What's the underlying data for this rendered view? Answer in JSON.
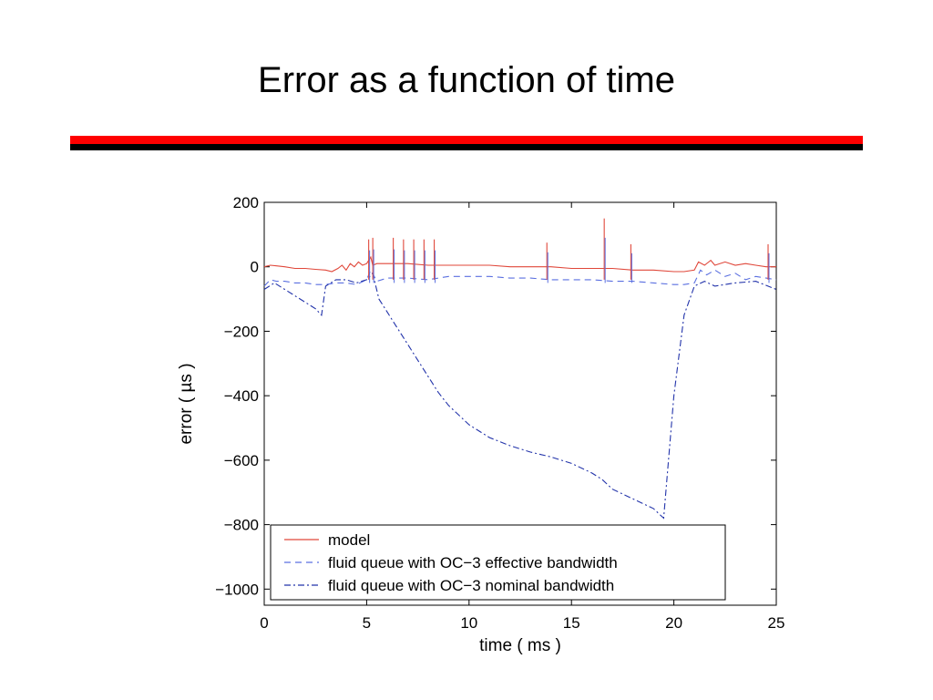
{
  "slide": {
    "title": "Error as a function of time"
  },
  "colors": {
    "accent_red": "#ff0000",
    "accent_black": "#000000",
    "model": "#e0473a",
    "effective": "#5a6fe0",
    "nominal": "#2233aa"
  },
  "chart_data": {
    "type": "line",
    "xlabel": "time ( ms )",
    "ylabel": "error ( µs )",
    "xlim": [
      0,
      25
    ],
    "ylim": [
      -1050,
      200
    ],
    "xticks": [
      0,
      5,
      10,
      15,
      20,
      25
    ],
    "yticks": [
      200,
      0,
      -200,
      -400,
      -600,
      -800,
      -1000
    ],
    "xtick_labels": [
      "0",
      "5",
      "10",
      "15",
      "20",
      "25"
    ],
    "ytick_labels": [
      "200",
      "0",
      "−200",
      "−400",
      "−600",
      "−800",
      "−1000"
    ],
    "grid": false,
    "legend_position": "bottom-center",
    "series": [
      {
        "name": "model",
        "style": "solid",
        "x": [
          0,
          0.3,
          0.6,
          1,
          1.5,
          2,
          2.5,
          3,
          3.3,
          3.6,
          3.8,
          4.0,
          4.2,
          4.4,
          4.6,
          4.8,
          5.0,
          5.2,
          5.3,
          5.5,
          6,
          7,
          8,
          9,
          10,
          11,
          12,
          13,
          14,
          15,
          16,
          17,
          18,
          19,
          20,
          20.5,
          21,
          21.2,
          21.5,
          21.8,
          22,
          22.5,
          23,
          23.5,
          24,
          24.5,
          25
        ],
        "y": [
          0,
          5,
          3,
          0,
          -5,
          -5,
          -8,
          -10,
          -15,
          -5,
          5,
          -10,
          10,
          0,
          15,
          5,
          10,
          30,
          5,
          10,
          10,
          10,
          5,
          5,
          5,
          5,
          0,
          0,
          0,
          -5,
          -5,
          -5,
          -10,
          -10,
          -15,
          -15,
          -10,
          15,
          5,
          20,
          5,
          15,
          5,
          10,
          5,
          0,
          0
        ]
      },
      {
        "name": "fluid queue with OC−3 effective bandwidth",
        "style": "dashed",
        "x": [
          0,
          0.3,
          0.6,
          1,
          1.5,
          2,
          2.5,
          3,
          3.5,
          4,
          4.5,
          5,
          5.2,
          5.5,
          6,
          7,
          8,
          9,
          10,
          11,
          12,
          13,
          14,
          15,
          16,
          17,
          18,
          19,
          20,
          20.5,
          21,
          21.3,
          21.6,
          22,
          22.5,
          23,
          23.5,
          24,
          24.5,
          25
        ],
        "y": [
          -60,
          -40,
          -45,
          -45,
          -50,
          -50,
          -55,
          -55,
          -50,
          -50,
          -55,
          -40,
          -10,
          -45,
          -35,
          -35,
          -40,
          -30,
          -30,
          -30,
          -35,
          -35,
          -40,
          -40,
          -40,
          -45,
          -45,
          -50,
          -55,
          -55,
          -50,
          -10,
          -25,
          -10,
          -30,
          -20,
          -40,
          -30,
          -35,
          -40
        ]
      },
      {
        "name": "fluid queue with OC−3 nominal bandwidth",
        "style": "dashdot",
        "x": [
          0,
          0.5,
          1,
          1.5,
          2,
          2.5,
          2.8,
          3,
          3.5,
          4,
          4.5,
          5,
          5.3,
          5.6,
          6,
          6.5,
          7,
          7.5,
          8,
          8.5,
          9,
          10,
          11,
          12,
          13,
          14,
          15,
          16,
          16.5,
          17,
          18,
          19,
          19.5,
          20,
          20.5,
          21,
          21.5,
          22,
          23,
          24,
          25
        ],
        "y": [
          -70,
          -50,
          -70,
          -90,
          -110,
          -130,
          -150,
          -60,
          -40,
          -40,
          -50,
          -40,
          -20,
          -100,
          -140,
          -190,
          -240,
          -290,
          -340,
          -390,
          -430,
          -490,
          -530,
          -555,
          -575,
          -590,
          -610,
          -640,
          -660,
          -690,
          -720,
          -750,
          -780,
          -400,
          -150,
          -60,
          -45,
          -60,
          -50,
          -45,
          -70
        ]
      }
    ],
    "spikes": [
      {
        "x": 5.1,
        "y": 85
      },
      {
        "x": 5.3,
        "y": 90
      },
      {
        "x": 6.3,
        "y": 90
      },
      {
        "x": 6.8,
        "y": 85
      },
      {
        "x": 7.3,
        "y": 85
      },
      {
        "x": 7.8,
        "y": 85
      },
      {
        "x": 8.3,
        "y": 85
      },
      {
        "x": 13.8,
        "y": 75
      },
      {
        "x": 16.6,
        "y": 150
      },
      {
        "x": 17.9,
        "y": 70
      },
      {
        "x": 24.6,
        "y": 70
      }
    ]
  }
}
